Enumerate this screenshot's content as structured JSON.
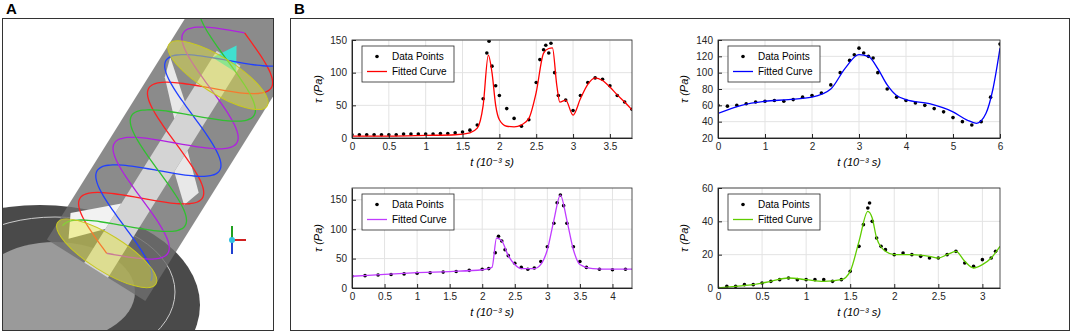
{
  "panels": [
    {
      "label": "A"
    },
    {
      "label": "B"
    }
  ],
  "chart_data": [
    {
      "type": "line",
      "x_label": "t (10⁻³ s)",
      "y_label": "τ (Pa)",
      "xlim": [
        0,
        3.8
      ],
      "xticks": [
        0,
        0.5,
        1,
        1.5,
        2,
        2.5,
        3,
        3.5
      ],
      "ylim": [
        0,
        150
      ],
      "yticks": [
        0,
        50,
        100,
        150
      ],
      "grid": true,
      "legend": "upper left",
      "series": [
        {
          "name": "Data Points",
          "type": "scatter",
          "marker": "circle",
          "color": "#000000",
          "x": [
            0,
            0.1,
            0.2,
            0.3,
            0.4,
            0.5,
            0.6,
            0.7,
            0.8,
            0.9,
            1.0,
            1.1,
            1.2,
            1.3,
            1.4,
            1.5,
            1.6,
            1.7,
            1.78,
            1.83,
            1.86,
            1.9,
            1.95,
            2.0,
            2.1,
            2.2,
            2.3,
            2.4,
            2.5,
            2.55,
            2.6,
            2.63,
            2.67,
            2.7,
            2.75,
            2.8,
            2.9,
            3.0,
            3.1,
            3.2,
            3.3,
            3.4,
            3.5,
            3.6,
            3.7,
            3.8
          ],
          "values": [
            5,
            5,
            5,
            5,
            5,
            5,
            5,
            6,
            6,
            6,
            6,
            6,
            7,
            7,
            8,
            9,
            12,
            20,
            60,
            130,
            148,
            110,
            80,
            65,
            45,
            30,
            18,
            28,
            85,
            120,
            135,
            142,
            130,
            145,
            100,
            65,
            58,
            42,
            65,
            85,
            92,
            90,
            80,
            65,
            55,
            44
          ]
        },
        {
          "name": "Fitted Curve",
          "type": "line",
          "line_style": "solid",
          "color": "#ff0000",
          "x": [
            0,
            0.5,
            1.0,
            1.4,
            1.6,
            1.7,
            1.78,
            1.85,
            1.9,
            1.95,
            2.0,
            2.1,
            2.2,
            2.3,
            2.4,
            2.5,
            2.6,
            2.67,
            2.72,
            2.78,
            2.82,
            2.9,
            3.0,
            3.1,
            3.2,
            3.3,
            3.4,
            3.5,
            3.6,
            3.7,
            3.8
          ],
          "values": [
            3,
            3,
            4,
            5,
            8,
            15,
            50,
            127,
            100,
            50,
            28,
            18,
            17,
            20,
            30,
            70,
            130,
            137,
            138,
            80,
            55,
            58,
            35,
            60,
            82,
            92,
            88,
            78,
            66,
            55,
            43
          ]
        }
      ]
    },
    {
      "type": "line",
      "x_label": "t (10⁻³ s)",
      "y_label": "τ (Pa)",
      "xlim": [
        0,
        6
      ],
      "xticks": [
        0,
        1,
        2,
        3,
        4,
        5,
        6
      ],
      "ylim": [
        20,
        140
      ],
      "yticks": [
        20,
        40,
        60,
        80,
        100,
        120,
        140
      ],
      "grid": true,
      "legend": "upper left",
      "series": [
        {
          "name": "Data Points",
          "type": "scatter",
          "marker": "circle",
          "color": "#000000",
          "x": [
            0,
            0.2,
            0.4,
            0.6,
            0.8,
            1.0,
            1.2,
            1.4,
            1.6,
            1.8,
            2.0,
            2.2,
            2.4,
            2.6,
            2.8,
            2.9,
            3.0,
            3.1,
            3.2,
            3.3,
            3.4,
            3.6,
            3.8,
            4.0,
            4.2,
            4.4,
            4.6,
            4.8,
            5.0,
            5.2,
            5.4,
            5.6,
            5.8,
            6.0
          ],
          "values": [
            60,
            59,
            60,
            62,
            64,
            65,
            66,
            65,
            67,
            70,
            72,
            75,
            85,
            100,
            115,
            122,
            130,
            124,
            120,
            118,
            100,
            80,
            70,
            66,
            63,
            60,
            56,
            52,
            45,
            40,
            36,
            40,
            70,
            135
          ]
        },
        {
          "name": "Fitted Curve",
          "type": "line",
          "line_style": "solid",
          "color": "#0000ff",
          "x": [
            0,
            0.5,
            1.0,
            1.5,
            2.0,
            2.4,
            2.7,
            3.0,
            3.2,
            3.4,
            3.6,
            3.8,
            4.0,
            4.5,
            5.0,
            5.3,
            5.5,
            5.7,
            5.85,
            6.0
          ],
          "values": [
            50,
            60,
            65,
            67,
            70,
            80,
            105,
            122,
            120,
            105,
            85,
            72,
            67,
            62,
            52,
            42,
            38,
            50,
            80,
            130
          ]
        }
      ]
    },
    {
      "type": "line",
      "x_label": "t (10⁻³ s)",
      "y_label": "τ (Pa)",
      "xlim": [
        0,
        4.3
      ],
      "xticks": [
        0,
        0.5,
        1,
        1.5,
        2,
        2.5,
        3,
        3.5,
        4
      ],
      "ylim": [
        0,
        170
      ],
      "yticks": [
        0,
        50,
        100,
        150
      ],
      "grid": true,
      "legend": "upper left",
      "series": [
        {
          "name": "Data Points",
          "type": "scatter",
          "marker": "circle",
          "color": "#000000",
          "x": [
            0,
            0.2,
            0.4,
            0.6,
            0.8,
            1.0,
            1.2,
            1.4,
            1.6,
            1.8,
            2.0,
            2.1,
            2.2,
            2.25,
            2.3,
            2.35,
            2.4,
            2.5,
            2.6,
            2.7,
            2.8,
            2.9,
            3.0,
            3.1,
            3.15,
            3.2,
            3.25,
            3.3,
            3.4,
            3.5,
            3.6,
            3.8,
            4.0,
            4.2
          ],
          "values": [
            20,
            21,
            22,
            23,
            24,
            25,
            26,
            27,
            28,
            30,
            32,
            33,
            60,
            88,
            80,
            65,
            55,
            42,
            35,
            32,
            34,
            45,
            70,
            110,
            145,
            158,
            140,
            110,
            70,
            45,
            35,
            32,
            31,
            32
          ]
        },
        {
          "name": "Fitted Curve",
          "type": "line",
          "line_style": "solid",
          "color": "#c03cff",
          "x": [
            0,
            0.5,
            1.0,
            1.5,
            2.0,
            2.15,
            2.22,
            2.3,
            2.4,
            2.5,
            2.6,
            2.8,
            2.9,
            3.0,
            3.1,
            3.2,
            3.3,
            3.4,
            3.5,
            3.7,
            4.0,
            4.3
          ],
          "values": [
            20,
            23,
            26,
            28,
            31,
            35,
            85,
            80,
            55,
            40,
            33,
            33,
            40,
            65,
            115,
            158,
            115,
            65,
            40,
            33,
            32,
            32
          ]
        }
      ]
    },
    {
      "type": "line",
      "x_label": "t (10⁻³ s)",
      "y_label": "τ (Pa)",
      "xlim": [
        0,
        3.2
      ],
      "xticks": [
        0,
        0.5,
        1,
        1.5,
        2,
        2.5,
        3
      ],
      "ylim": [
        0,
        60
      ],
      "yticks": [
        0,
        20,
        40,
        60
      ],
      "grid": true,
      "legend": "upper left",
      "series": [
        {
          "name": "Data Points",
          "type": "scatter",
          "marker": "circle",
          "color": "#000000",
          "x": [
            0,
            0.1,
            0.2,
            0.3,
            0.4,
            0.5,
            0.6,
            0.7,
            0.8,
            0.9,
            1.0,
            1.1,
            1.2,
            1.3,
            1.4,
            1.5,
            1.6,
            1.65,
            1.7,
            1.72,
            1.75,
            1.8,
            1.85,
            1.9,
            2.0,
            2.1,
            2.2,
            2.3,
            2.4,
            2.5,
            2.6,
            2.7,
            2.8,
            2.9,
            3.0,
            3.1,
            3.15
          ],
          "values": [
            0,
            1,
            1,
            2,
            2,
            3,
            4,
            5,
            6,
            5,
            5,
            5,
            5,
            4,
            5,
            10,
            25,
            38,
            48,
            51,
            40,
            30,
            25,
            23,
            20,
            21,
            20,
            19,
            18,
            18,
            20,
            22,
            15,
            13,
            17,
            18,
            22
          ]
        },
        {
          "name": "Fitted Curve",
          "type": "line",
          "line_style": "solid",
          "color": "#5fcc00",
          "x": [
            0,
            0.2,
            0.4,
            0.6,
            0.8,
            1.0,
            1.2,
            1.4,
            1.5,
            1.6,
            1.7,
            1.75,
            1.8,
            1.9,
            2.0,
            2.2,
            2.4,
            2.5,
            2.6,
            2.7,
            2.8,
            2.9,
            3.0,
            3.1,
            3.2
          ],
          "values": [
            0,
            1,
            2,
            4,
            6,
            5,
            4,
            5,
            10,
            28,
            46,
            42,
            30,
            22,
            20,
            20,
            19,
            18,
            20,
            22,
            16,
            12,
            14,
            18,
            25
          ]
        }
      ]
    }
  ]
}
